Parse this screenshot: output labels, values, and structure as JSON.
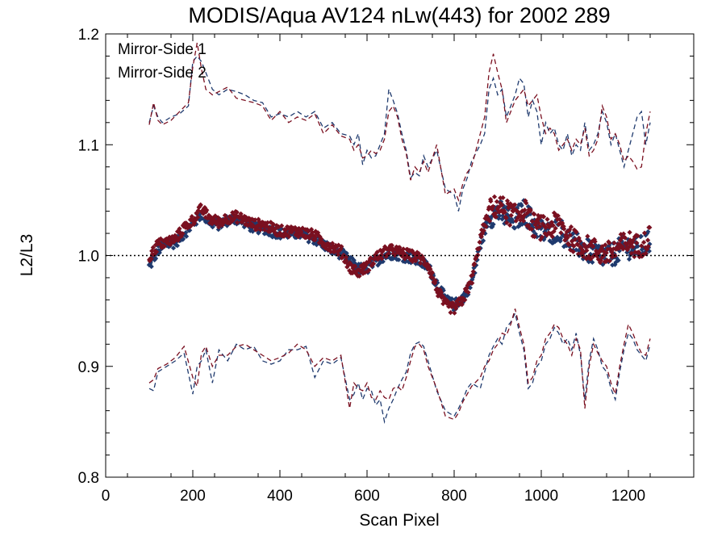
{
  "chart_data": {
    "type": "scatter",
    "title": "MODIS/Aqua AV124 nLw(443) for 2002 289",
    "xlabel": "Scan Pixel",
    "ylabel": "L2/L3",
    "xlim": [
      0,
      1350
    ],
    "ylim": [
      0.8,
      1.2
    ],
    "x_ticks": [
      0,
      200,
      400,
      600,
      800,
      1000,
      1200
    ],
    "y_ticks": [
      0.8,
      0.9,
      1.0,
      1.1,
      1.2
    ],
    "x_tick_labels": [
      "0",
      "200",
      "400",
      "600",
      "800",
      "1000",
      "1200"
    ],
    "y_tick_labels": [
      "0.8",
      "0.9",
      "1.0",
      "1.1",
      "1.2"
    ],
    "reference_line": 1.0,
    "legend_position": "top-left",
    "grid": false,
    "series": [
      {
        "name": "Mirror-Side 1",
        "color": "#1f3a6e",
        "median": {
          "x": [
            100,
            120,
            140,
            160,
            180,
            200,
            220,
            240,
            260,
            280,
            300,
            320,
            340,
            360,
            380,
            400,
            420,
            440,
            460,
            480,
            500,
            520,
            540,
            560,
            580,
            600,
            620,
            640,
            660,
            680,
            700,
            720,
            740,
            760,
            780,
            800,
            820,
            840,
            860,
            880,
            900,
            920,
            940,
            960,
            980,
            1000,
            1020,
            1040,
            1060,
            1080,
            1100,
            1120,
            1140,
            1160,
            1180,
            1200,
            1220,
            1240,
            1250
          ],
          "y": [
            0.99,
            1.005,
            1.01,
            1.012,
            1.02,
            1.028,
            1.038,
            1.03,
            1.028,
            1.032,
            1.033,
            1.03,
            1.025,
            1.025,
            1.022,
            1.02,
            1.02,
            1.02,
            1.018,
            1.015,
            1.01,
            1.005,
            1.002,
            0.995,
            0.988,
            0.988,
            0.995,
            1.0,
            1.002,
            1.0,
            0.998,
            0.995,
            0.99,
            0.975,
            0.96,
            0.955,
            0.962,
            0.975,
            1.01,
            1.035,
            1.04,
            1.035,
            1.032,
            1.04,
            1.03,
            1.022,
            1.02,
            1.025,
            1.015,
            1.01,
            1.005,
            1.002,
            1.0,
            1.0,
            1.005,
            1.008,
            1.005,
            1.01,
            1.012
          ]
        },
        "upper": {
          "x": [
            100,
            110,
            120,
            130,
            150,
            170,
            190,
            200,
            210,
            220,
            230,
            245,
            260,
            280,
            300,
            320,
            340,
            360,
            380,
            400,
            420,
            440,
            460,
            480,
            500,
            520,
            540,
            560,
            570,
            580,
            590,
            600,
            610,
            620,
            630,
            640,
            650,
            660,
            670,
            680,
            690,
            700,
            710,
            720,
            730,
            740,
            760,
            780,
            800,
            810,
            820,
            830,
            840,
            860,
            870,
            880,
            890,
            900,
            910,
            920,
            930,
            940,
            950,
            960,
            970,
            980,
            990,
            1000,
            1010,
            1020,
            1030,
            1040,
            1050,
            1060,
            1070,
            1080,
            1090,
            1100,
            1110,
            1120,
            1130,
            1140,
            1150,
            1160,
            1170,
            1180,
            1190,
            1200,
            1210,
            1220,
            1230,
            1240,
            1250
          ],
          "y": [
            1.12,
            1.135,
            1.125,
            1.12,
            1.125,
            1.128,
            1.135,
            1.175,
            1.18,
            1.175,
            1.165,
            1.15,
            1.145,
            1.15,
            1.148,
            1.145,
            1.14,
            1.138,
            1.125,
            1.128,
            1.125,
            1.13,
            1.125,
            1.13,
            1.115,
            1.12,
            1.11,
            1.108,
            1.1,
            1.11,
            1.082,
            1.095,
            1.088,
            1.09,
            1.1,
            1.11,
            1.15,
            1.14,
            1.128,
            1.11,
            1.095,
            1.07,
            1.075,
            1.072,
            1.09,
            1.08,
            1.095,
            1.06,
            1.055,
            1.04,
            1.06,
            1.07,
            1.085,
            1.1,
            1.11,
            1.15,
            1.16,
            1.145,
            1.15,
            1.125,
            1.135,
            1.145,
            1.16,
            1.155,
            1.125,
            1.14,
            1.13,
            1.1,
            1.12,
            1.11,
            1.115,
            1.1,
            1.095,
            1.11,
            1.09,
            1.1,
            1.095,
            1.12,
            1.095,
            1.1,
            1.11,
            1.13,
            1.12,
            1.1,
            1.11,
            1.095,
            1.08,
            1.095,
            1.11,
            1.125,
            1.13,
            1.1,
            1.12
          ]
        },
        "lower": {
          "x": [
            100,
            110,
            120,
            140,
            160,
            180,
            200,
            210,
            220,
            230,
            245,
            260,
            280,
            300,
            320,
            340,
            360,
            380,
            400,
            420,
            440,
            460,
            480,
            500,
            520,
            540,
            560,
            570,
            580,
            590,
            600,
            610,
            620,
            630,
            640,
            650,
            660,
            670,
            680,
            690,
            700,
            710,
            720,
            730,
            740,
            760,
            780,
            800,
            810,
            820,
            830,
            840,
            860,
            870,
            880,
            890,
            900,
            910,
            920,
            930,
            940,
            950,
            960,
            970,
            980,
            990,
            1000,
            1010,
            1020,
            1030,
            1040,
            1050,
            1060,
            1070,
            1080,
            1090,
            1100,
            1110,
            1120,
            1130,
            1140,
            1150,
            1160,
            1170,
            1180,
            1190,
            1200,
            1210,
            1220,
            1230,
            1240,
            1250
          ],
          "y": [
            0.88,
            0.878,
            0.895,
            0.9,
            0.905,
            0.912,
            0.875,
            0.9,
            0.905,
            0.915,
            0.885,
            0.915,
            0.905,
            0.92,
            0.915,
            0.918,
            0.905,
            0.902,
            0.905,
            0.915,
            0.915,
            0.918,
            0.89,
            0.905,
            0.902,
            0.908,
            0.87,
            0.875,
            0.885,
            0.87,
            0.88,
            0.878,
            0.865,
            0.87,
            0.85,
            0.862,
            0.87,
            0.88,
            0.888,
            0.895,
            0.912,
            0.92,
            0.922,
            0.918,
            0.905,
            0.878,
            0.86,
            0.855,
            0.862,
            0.87,
            0.88,
            0.885,
            0.88,
            0.895,
            0.91,
            0.918,
            0.925,
            0.92,
            0.935,
            0.94,
            0.948,
            0.93,
            0.915,
            0.88,
            0.885,
            0.9,
            0.905,
            0.92,
            0.925,
            0.935,
            0.93,
            0.92,
            0.925,
            0.915,
            0.93,
            0.91,
            0.87,
            0.905,
            0.925,
            0.915,
            0.9,
            0.895,
            0.88,
            0.87,
            0.895,
            0.915,
            0.93,
            0.925,
            0.915,
            0.91,
            0.905,
            0.92
          ]
        }
      },
      {
        "name": "Mirror-Side 2",
        "color": "#7a1020",
        "median": {
          "x": [
            100,
            120,
            140,
            160,
            180,
            200,
            220,
            240,
            260,
            280,
            300,
            320,
            340,
            360,
            380,
            400,
            420,
            440,
            460,
            480,
            500,
            520,
            540,
            560,
            580,
            600,
            620,
            640,
            660,
            680,
            700,
            720,
            740,
            760,
            780,
            800,
            820,
            840,
            860,
            880,
            900,
            920,
            940,
            960,
            980,
            1000,
            1020,
            1040,
            1060,
            1080,
            1100,
            1120,
            1140,
            1160,
            1180,
            1200,
            1220,
            1240,
            1250
          ],
          "y": [
            0.998,
            1.01,
            1.012,
            1.015,
            1.025,
            1.032,
            1.042,
            1.033,
            1.03,
            1.034,
            1.035,
            1.032,
            1.028,
            1.028,
            1.025,
            1.022,
            1.022,
            1.022,
            1.02,
            1.018,
            1.012,
            1.008,
            1.004,
            0.99,
            0.985,
            0.99,
            0.998,
            1.003,
            1.005,
            1.002,
            1.0,
            0.998,
            0.992,
            0.97,
            0.955,
            0.952,
            0.96,
            0.978,
            1.015,
            1.04,
            1.045,
            1.04,
            1.035,
            1.042,
            1.028,
            1.025,
            1.025,
            1.03,
            1.018,
            1.012,
            1.008,
            1.005,
            1.002,
            1.002,
            1.008,
            1.012,
            1.008,
            1.012,
            1.018
          ]
        },
        "upper": {
          "x": [
            100,
            110,
            120,
            130,
            150,
            170,
            190,
            200,
            210,
            220,
            230,
            245,
            260,
            280,
            300,
            320,
            340,
            360,
            380,
            400,
            420,
            440,
            460,
            480,
            500,
            520,
            540,
            560,
            570,
            580,
            590,
            600,
            610,
            620,
            630,
            640,
            650,
            660,
            670,
            680,
            690,
            700,
            710,
            720,
            730,
            740,
            760,
            780,
            800,
            810,
            820,
            830,
            840,
            860,
            870,
            880,
            890,
            900,
            910,
            920,
            930,
            940,
            950,
            960,
            970,
            980,
            990,
            1000,
            1010,
            1020,
            1030,
            1040,
            1050,
            1060,
            1070,
            1080,
            1090,
            1100,
            1110,
            1120,
            1130,
            1140,
            1150,
            1160,
            1170,
            1180,
            1190,
            1200,
            1210,
            1220,
            1230,
            1240,
            1250
          ],
          "y": [
            1.118,
            1.138,
            1.122,
            1.118,
            1.122,
            1.13,
            1.138,
            1.17,
            1.192,
            1.168,
            1.15,
            1.145,
            1.148,
            1.152,
            1.142,
            1.14,
            1.138,
            1.135,
            1.122,
            1.13,
            1.12,
            1.125,
            1.122,
            1.128,
            1.11,
            1.118,
            1.108,
            1.105,
            1.095,
            1.1,
            1.088,
            1.09,
            1.095,
            1.092,
            1.095,
            1.105,
            1.13,
            1.135,
            1.125,
            1.105,
            1.092,
            1.068,
            1.08,
            1.075,
            1.085,
            1.075,
            1.1,
            1.055,
            1.06,
            1.05,
            1.065,
            1.075,
            1.08,
            1.11,
            1.125,
            1.165,
            1.182,
            1.165,
            1.15,
            1.12,
            1.13,
            1.14,
            1.145,
            1.15,
            1.135,
            1.14,
            1.145,
            1.125,
            1.11,
            1.115,
            1.11,
            1.095,
            1.1,
            1.105,
            1.095,
            1.105,
            1.1,
            1.115,
            1.09,
            1.095,
            1.105,
            1.135,
            1.125,
            1.105,
            1.11,
            1.1,
            1.085,
            1.09,
            1.085,
            1.078,
            1.08,
            1.11,
            1.13
          ]
        },
        "lower": {
          "x": [
            100,
            110,
            120,
            140,
            160,
            180,
            200,
            210,
            220,
            230,
            245,
            260,
            280,
            300,
            320,
            340,
            360,
            380,
            400,
            420,
            440,
            460,
            480,
            500,
            520,
            540,
            560,
            570,
            580,
            590,
            600,
            610,
            620,
            630,
            640,
            650,
            660,
            670,
            680,
            690,
            700,
            710,
            720,
            730,
            740,
            760,
            780,
            800,
            810,
            820,
            830,
            840,
            860,
            870,
            880,
            890,
            900,
            910,
            920,
            930,
            940,
            950,
            960,
            970,
            980,
            990,
            1000,
            1010,
            1020,
            1030,
            1040,
            1050,
            1060,
            1070,
            1080,
            1090,
            1100,
            1110,
            1120,
            1130,
            1140,
            1150,
            1160,
            1170,
            1180,
            1190,
            1200,
            1210,
            1220,
            1230,
            1240,
            1250
          ],
          "y": [
            0.885,
            0.888,
            0.898,
            0.902,
            0.908,
            0.918,
            0.89,
            0.882,
            0.912,
            0.918,
            0.9,
            0.91,
            0.91,
            0.918,
            0.92,
            0.915,
            0.91,
            0.905,
            0.908,
            0.912,
            0.92,
            0.915,
            0.9,
            0.908,
            0.905,
            0.91,
            0.862,
            0.885,
            0.88,
            0.878,
            0.885,
            0.872,
            0.87,
            0.878,
            0.872,
            0.87,
            0.88,
            0.882,
            0.878,
            0.89,
            0.905,
            0.918,
            0.92,
            0.915,
            0.9,
            0.88,
            0.855,
            0.852,
            0.858,
            0.868,
            0.875,
            0.882,
            0.89,
            0.9,
            0.905,
            0.915,
            0.92,
            0.93,
            0.928,
            0.938,
            0.952,
            0.935,
            0.92,
            0.885,
            0.89,
            0.905,
            0.91,
            0.925,
            0.93,
            0.938,
            0.935,
            0.925,
            0.92,
            0.91,
            0.925,
            0.915,
            0.862,
            0.9,
            0.92,
            0.912,
            0.905,
            0.9,
            0.885,
            0.875,
            0.9,
            0.92,
            0.938,
            0.93,
            0.92,
            0.912,
            0.91,
            0.925
          ]
        }
      }
    ]
  }
}
